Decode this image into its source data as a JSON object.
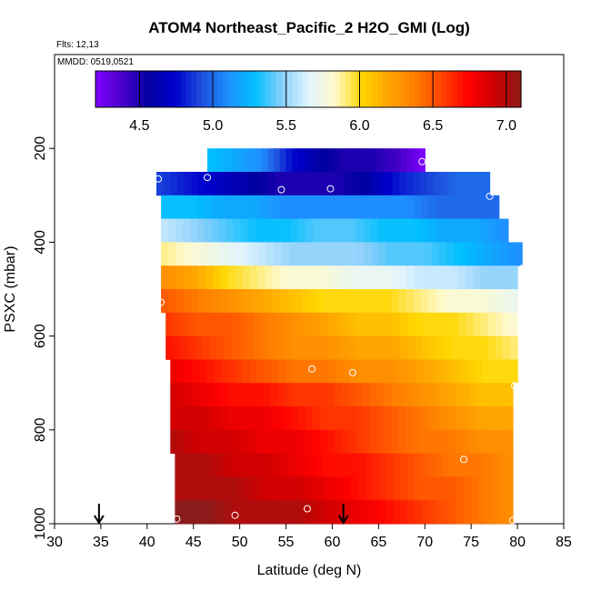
{
  "chart_data": {
    "type": "heatmap",
    "title": "ATOM4 Northeast_Pacific_2 H2O_GMI (Log)",
    "flights_note": "Flts: 12,13",
    "date_note": "MMDD: 0519,0521",
    "xlabel": "Latitude (deg N)",
    "ylabel": "PSXC (mbar)",
    "xlim": [
      30,
      85
    ],
    "ylim": [
      1000,
      0
    ],
    "xticks": [
      30,
      35,
      40,
      45,
      50,
      55,
      60,
      65,
      70,
      75,
      80,
      85
    ],
    "yticks": [
      200,
      400,
      600,
      800,
      1000
    ],
    "colorbar": {
      "range": [
        4.2,
        7.1
      ],
      "ticks": [
        4.5,
        5.0,
        5.5,
        6.0,
        6.5,
        7.0
      ],
      "tick_labels": [
        "4.5",
        "5.0",
        "5.5",
        "6.0",
        "6.5",
        "7.0"
      ],
      "colors": [
        "#7f00ff",
        "#4b00cc",
        "#0000a0",
        "#0000cd",
        "#1e50dc",
        "#1e90ff",
        "#00bfff",
        "#87cefa",
        "#e0f4ff",
        "#fffacd",
        "#ffd700",
        "#ffa500",
        "#ff7f00",
        "#ff4500",
        "#ff0000",
        "#cd0000",
        "#8b1a1a"
      ]
    },
    "layers": [
      {
        "p": 225,
        "xmin": 46.5,
        "xmax": 70.0,
        "v": [
          5.3,
          5.2,
          5.1,
          4.8,
          4.6,
          4.5,
          4.5,
          4.4,
          4.2
        ]
      },
      {
        "p": 275,
        "xmin": 41.0,
        "xmax": 77.0,
        "v": [
          4.9,
          4.8,
          4.7,
          4.6,
          4.5,
          4.5,
          4.5,
          4.6,
          4.8,
          4.9,
          5.0,
          5.0
        ]
      },
      {
        "p": 325,
        "xmin": 41.5,
        "xmax": 78.0,
        "v": [
          5.3,
          5.3,
          5.2,
          5.2,
          5.1,
          5.1,
          5.1,
          5.1,
          5.1,
          5.0,
          5.0,
          5.0
        ]
      },
      {
        "p": 375,
        "xmin": 41.5,
        "xmax": 79.0,
        "v": [
          5.6,
          5.5,
          5.4,
          5.3,
          5.3,
          5.4,
          5.4,
          5.3,
          5.3,
          5.2,
          5.2,
          5.1
        ]
      },
      {
        "p": 425,
        "xmin": 41.5,
        "xmax": 80.5,
        "v": [
          5.9,
          5.8,
          5.7,
          5.6,
          5.5,
          5.5,
          5.5,
          5.4,
          5.4,
          5.3,
          5.2,
          5.1
        ]
      },
      {
        "p": 475,
        "xmin": 41.5,
        "xmax": 80.0,
        "v": [
          6.3,
          6.2,
          6.0,
          5.9,
          5.8,
          5.8,
          5.7,
          5.7,
          5.6,
          5.6,
          5.5,
          5.5
        ]
      },
      {
        "p": 525,
        "xmin": 41.5,
        "xmax": 80.0,
        "v": [
          6.5,
          6.4,
          6.3,
          6.2,
          6.1,
          6.0,
          6.0,
          6.0,
          5.9,
          5.8,
          5.8,
          5.7
        ]
      },
      {
        "p": 575,
        "xmin": 42.0,
        "xmax": 80.0,
        "v": [
          6.6,
          6.5,
          6.5,
          6.4,
          6.3,
          6.2,
          6.1,
          6.1,
          6.0,
          6.0,
          5.9,
          5.8
        ]
      },
      {
        "p": 625,
        "xmin": 42.0,
        "xmax": 80.0,
        "v": [
          6.7,
          6.6,
          6.5,
          6.4,
          6.3,
          6.3,
          6.2,
          6.2,
          6.1,
          6.0,
          6.0,
          5.9
        ]
      },
      {
        "p": 675,
        "xmin": 42.5,
        "xmax": 80.0,
        "v": [
          6.8,
          6.7,
          6.6,
          6.5,
          6.4,
          6.4,
          6.3,
          6.3,
          6.2,
          6.1,
          6.0,
          6.0
        ]
      },
      {
        "p": 725,
        "xmin": 42.5,
        "xmax": 79.5,
        "v": [
          6.9,
          6.8,
          6.7,
          6.7,
          6.6,
          6.6,
          6.5,
          6.4,
          6.3,
          6.2,
          6.1,
          6.1
        ]
      },
      {
        "p": 775,
        "xmin": 42.5,
        "xmax": 79.5,
        "v": [
          6.9,
          6.9,
          6.8,
          6.8,
          6.7,
          6.6,
          6.6,
          6.5,
          6.4,
          6.3,
          6.2,
          6.2
        ]
      },
      {
        "p": 825,
        "xmin": 42.5,
        "xmax": 79.5,
        "v": [
          7.0,
          6.9,
          6.9,
          6.8,
          6.8,
          6.7,
          6.6,
          6.5,
          6.4,
          6.4,
          6.3,
          6.3
        ]
      },
      {
        "p": 875,
        "xmin": 43.0,
        "xmax": 79.5,
        "v": [
          7.0,
          7.0,
          6.9,
          6.9,
          6.8,
          6.7,
          6.7,
          6.6,
          6.5,
          6.4,
          6.4,
          6.3
        ]
      },
      {
        "p": 925,
        "xmin": 43.0,
        "xmax": 79.5,
        "v": [
          7.0,
          7.0,
          7.0,
          6.9,
          6.9,
          6.8,
          6.7,
          6.6,
          6.5,
          6.5,
          6.4,
          6.3
        ]
      },
      {
        "p": 975,
        "xmin": 43.0,
        "xmax": 79.5,
        "v": [
          7.1,
          7.1,
          7.0,
          7.0,
          7.0,
          6.9,
          6.8,
          6.7,
          6.6,
          6.5,
          6.4,
          6.3
        ]
      }
    ],
    "markers": [
      {
        "lat": 69.7,
        "p": 228
      },
      {
        "lat": 41.2,
        "p": 265
      },
      {
        "lat": 46.5,
        "p": 262
      },
      {
        "lat": 54.5,
        "p": 288
      },
      {
        "lat": 59.8,
        "p": 286
      },
      {
        "lat": 77.0,
        "p": 302
      },
      {
        "lat": 80.5,
        "p": 456
      },
      {
        "lat": 41.5,
        "p": 528
      },
      {
        "lat": 57.8,
        "p": 670
      },
      {
        "lat": 62.2,
        "p": 678
      },
      {
        "lat": 79.7,
        "p": 706
      },
      {
        "lat": 74.2,
        "p": 863
      },
      {
        "lat": 57.3,
        "p": 968
      },
      {
        "lat": 49.5,
        "p": 982
      },
      {
        "lat": 43.2,
        "p": 990
      },
      {
        "lat": 79.5,
        "p": 993
      }
    ],
    "arrows": [
      34.8,
      61.2
    ]
  }
}
